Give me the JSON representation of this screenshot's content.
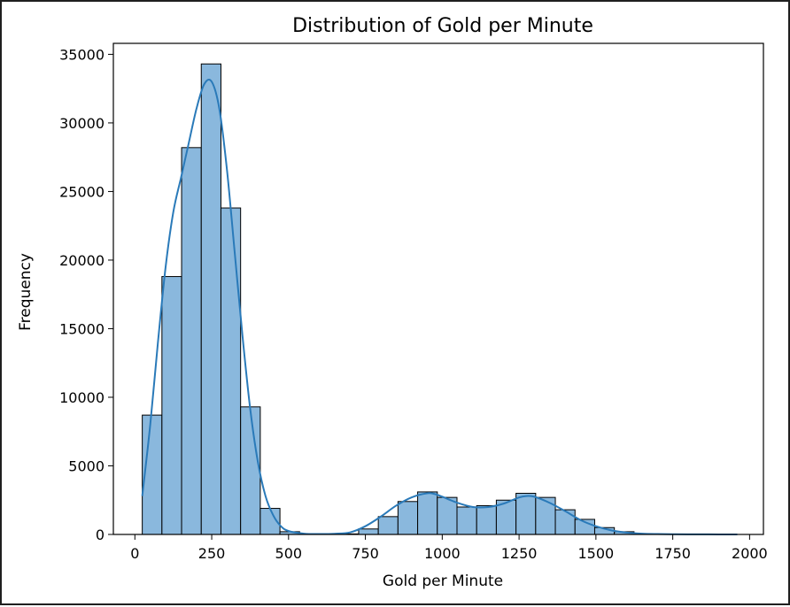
{
  "chart_data": {
    "type": "bar",
    "title": "Distribution of Gold per Minute",
    "xlabel": "Gold per Minute",
    "ylabel": "Frequency",
    "xlim": [
      -70,
      2045
    ],
    "ylim": [
      0,
      35800
    ],
    "xticks": [
      0,
      250,
      500,
      750,
      1000,
      1250,
      1500,
      1750,
      2000
    ],
    "yticks": [
      0,
      5000,
      10000,
      15000,
      20000,
      25000,
      30000,
      35000
    ],
    "grid": false,
    "bins": [
      {
        "x0": 24,
        "x1": 88,
        "count": 8700
      },
      {
        "x0": 88,
        "x1": 152,
        "count": 18800
      },
      {
        "x0": 152,
        "x1": 216,
        "count": 28200
      },
      {
        "x0": 216,
        "x1": 280,
        "count": 34300
      },
      {
        "x0": 280,
        "x1": 344,
        "count": 23800
      },
      {
        "x0": 344,
        "x1": 408,
        "count": 9300
      },
      {
        "x0": 408,
        "x1": 472,
        "count": 1900
      },
      {
        "x0": 472,
        "x1": 536,
        "count": 200
      },
      {
        "x0": 536,
        "x1": 600,
        "count": 30
      },
      {
        "x0": 600,
        "x1": 664,
        "count": 20
      },
      {
        "x0": 664,
        "x1": 728,
        "count": 40
      },
      {
        "x0": 728,
        "x1": 792,
        "count": 400
      },
      {
        "x0": 792,
        "x1": 856,
        "count": 1300
      },
      {
        "x0": 856,
        "x1": 920,
        "count": 2400
      },
      {
        "x0": 920,
        "x1": 984,
        "count": 3100
      },
      {
        "x0": 984,
        "x1": 1048,
        "count": 2700
      },
      {
        "x0": 1048,
        "x1": 1112,
        "count": 2000
      },
      {
        "x0": 1112,
        "x1": 1176,
        "count": 2100
      },
      {
        "x0": 1176,
        "x1": 1240,
        "count": 2500
      },
      {
        "x0": 1240,
        "x1": 1304,
        "count": 3000
      },
      {
        "x0": 1304,
        "x1": 1368,
        "count": 2700
      },
      {
        "x0": 1368,
        "x1": 1432,
        "count": 1800
      },
      {
        "x0": 1432,
        "x1": 1496,
        "count": 1100
      },
      {
        "x0": 1496,
        "x1": 1560,
        "count": 500
      },
      {
        "x0": 1560,
        "x1": 1624,
        "count": 200
      },
      {
        "x0": 1624,
        "x1": 1688,
        "count": 60
      },
      {
        "x0": 1688,
        "x1": 1752,
        "count": 20
      },
      {
        "x0": 1752,
        "x1": 1816,
        "count": 10
      },
      {
        "x0": 1816,
        "x1": 1880,
        "count": 5
      },
      {
        "x0": 1880,
        "x1": 1944,
        "count": 5
      }
    ],
    "kde": {
      "x": [
        24,
        50,
        75,
        100,
        125,
        150,
        175,
        200,
        225,
        250,
        275,
        300,
        325,
        350,
        375,
        400,
        425,
        450,
        475,
        500,
        550,
        600,
        650,
        700,
        750,
        800,
        850,
        900,
        950,
        975,
        1000,
        1050,
        1100,
        1150,
        1200,
        1250,
        1275,
        1300,
        1350,
        1400,
        1450,
        1500,
        1550,
        1600,
        1650,
        1700,
        1750,
        1800,
        1850,
        1900,
        1960
      ],
      "y": [
        2800,
        8000,
        14000,
        19500,
        23500,
        26000,
        28500,
        31000,
        32800,
        33000,
        31000,
        26500,
        20500,
        14500,
        9200,
        5300,
        2800,
        1400,
        600,
        250,
        60,
        30,
        50,
        150,
        600,
        1300,
        2100,
        2700,
        3000,
        2950,
        2750,
        2300,
        2000,
        2000,
        2250,
        2700,
        2800,
        2750,
        2300,
        1700,
        1050,
        600,
        300,
        140,
        60,
        30,
        15,
        8,
        5,
        3,
        2
      ]
    },
    "colors": {
      "bar_fill": "#8ab8dd",
      "bar_edge": "#000000",
      "kde_line": "#2a7ab9"
    }
  }
}
